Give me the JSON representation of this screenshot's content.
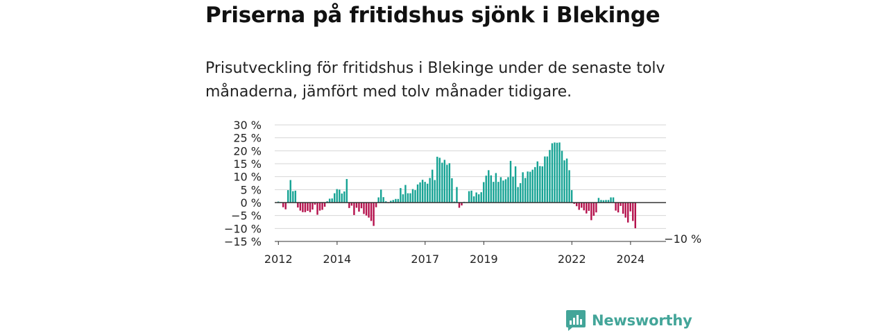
{
  "title": "Priserna på fritidshus sjönk i Blekinge",
  "subtitle": "Prisutveckling för fritidshus i Blekinge under de senaste tolv månaderna, jämfört med tolv månader tidigare.",
  "brand": {
    "name": "Newsworthy",
    "icon": "newsworthy-bar-chart-logo-icon"
  },
  "colors": {
    "positive": "#16a394",
    "negative": "#b5124d",
    "grid": "#d6d6d6",
    "zero_line": "#333333",
    "brand": "#43a599"
  },
  "chart_data": {
    "type": "bar",
    "title": "Priserna på fritidshus sjönk i Blekinge",
    "ylabel": "",
    "xlabel": "",
    "ylim": [
      -15,
      30
    ],
    "yticks": [
      30,
      25,
      20,
      15,
      10,
      5,
      0,
      -5,
      -10,
      -15
    ],
    "ytick_labels": [
      "30 %",
      "25 %",
      "20 %",
      "15 %",
      "10 %",
      "5 %",
      "0 %",
      "−5 %",
      "−10 %",
      "−15 %"
    ],
    "x_start": "2011-12",
    "x_end": "2025-03",
    "xticks": [
      "2012-01",
      "2014-01",
      "2017-01",
      "2019-01",
      "2022-01",
      "2024-01"
    ],
    "xtick_labels": [
      "2012",
      "2014",
      "2017",
      "2019",
      "2022",
      "2024"
    ],
    "grid": true,
    "series": [
      {
        "start": "2012-01",
        "frequency": "monthly",
        "values": [
          0.4,
          0.2,
          -1.8,
          -2.6,
          4.8,
          8.7,
          4.4,
          4.6,
          -1.9,
          -3.1,
          -3.7,
          -3.7,
          -3.2,
          -3.7,
          -2.7,
          -0.8,
          -4.7,
          -3.1,
          -2.8,
          -1.6,
          0.5,
          1.5,
          1.6,
          3.6,
          5.2,
          5.0,
          3.5,
          4.3,
          9.1,
          -2.1,
          -1.2,
          -4.8,
          -2.0,
          -3.5,
          -2.2,
          -4.4,
          -5.0,
          -5.8,
          -7.1,
          -9.0,
          -1.8,
          2.0,
          5.0,
          2.1,
          0.5,
          -0.2,
          0.7,
          1.0,
          1.4,
          1.4,
          5.6,
          3.2,
          6.8,
          3.6,
          3.6,
          5.2,
          4.8,
          7.0,
          7.8,
          8.8,
          8.0,
          7.3,
          9.5,
          12.7,
          8.7,
          17.7,
          17.3,
          15.4,
          16.5,
          14.6,
          15.2,
          9.4,
          0.4,
          6.0,
          -2.0,
          -1.1,
          0.3,
          0.2,
          4.4,
          4.6,
          2.4,
          3.9,
          3.2,
          4.0,
          7.9,
          10.4,
          12.5,
          10.5,
          8.0,
          11.4,
          8.0,
          9.8,
          8.5,
          9.0,
          9.8,
          16.1,
          10.0,
          14.0,
          6.0,
          7.5,
          11.7,
          9.5,
          12.0,
          11.9,
          12.7,
          13.7,
          15.9,
          14.1,
          14.0,
          17.8,
          17.8,
          20.3,
          22.9,
          23.2,
          23.1,
          23.2,
          20.0,
          16.3,
          17.0,
          12.5,
          4.8,
          -0.5,
          -1.4,
          -2.8,
          -2.0,
          -3.0,
          -4.2,
          -3.2,
          -6.8,
          -5.1,
          -3.8,
          1.8,
          1.0,
          0.9,
          1.0,
          1.0,
          2.0,
          2.0,
          -3.1,
          -3.8,
          -1.3,
          -4.3,
          -5.8,
          -7.7,
          -3.4,
          -7.1,
          -9.9
        ]
      }
    ],
    "annotations": [
      {
        "x": "2025-03",
        "text": "−10 %"
      }
    ]
  }
}
